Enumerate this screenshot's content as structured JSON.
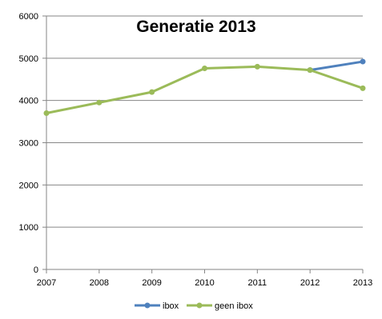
{
  "chart_data": {
    "type": "line",
    "title": "Generatie 2013",
    "x": [
      "2007",
      "2008",
      "2009",
      "2010",
      "2011",
      "2012",
      "2013"
    ],
    "ylim": [
      0,
      6000
    ],
    "yticks": [
      0,
      1000,
      2000,
      3000,
      4000,
      5000,
      6000
    ],
    "grid": true,
    "legend": "bottom",
    "series": [
      {
        "name": "ibox",
        "color": "#4f81bd",
        "values": [
          null,
          null,
          null,
          null,
          null,
          4720,
          4920
        ]
      },
      {
        "name": "geen ibox",
        "color": "#9bbb59",
        "values": [
          3700,
          3950,
          4200,
          4760,
          4800,
          4720,
          4290
        ]
      }
    ]
  }
}
